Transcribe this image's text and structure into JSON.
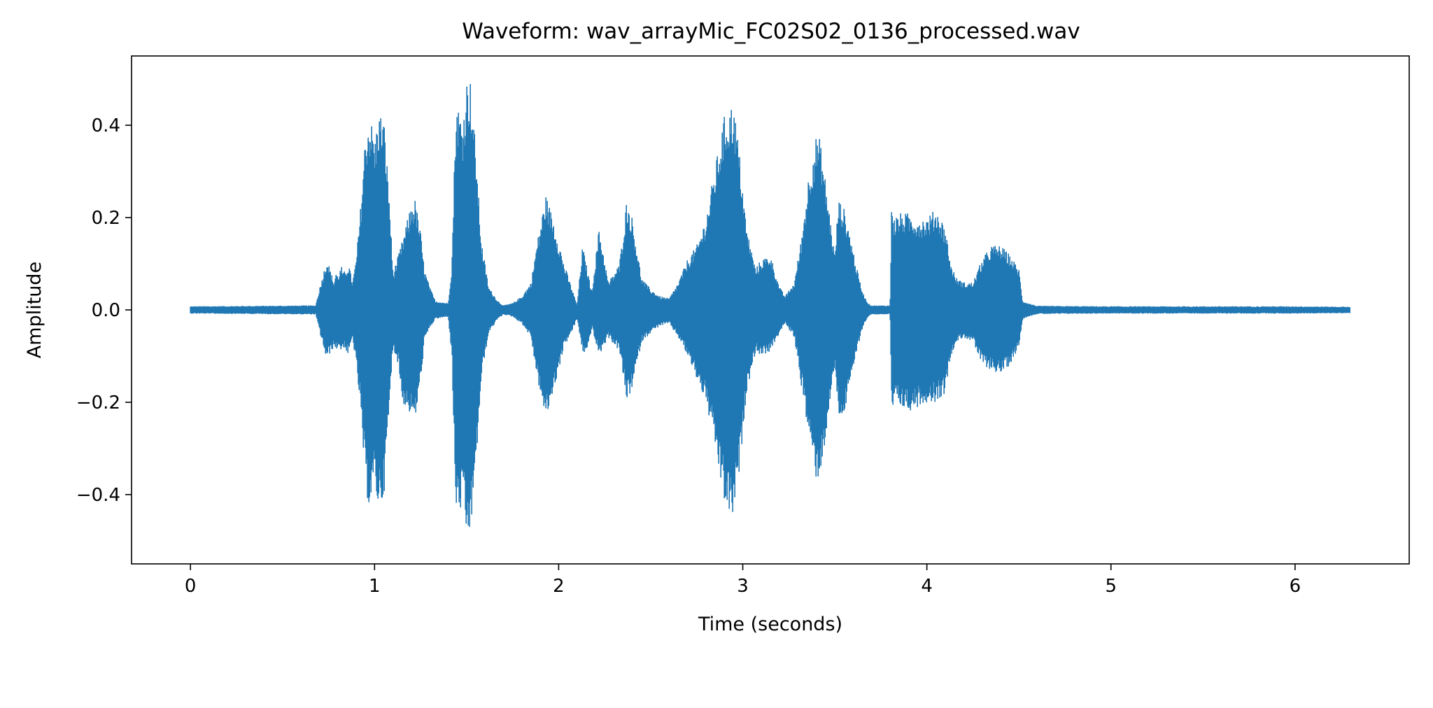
{
  "chart_data": {
    "type": "line",
    "title": "Waveform: wav_arrayMic_FC02S02_0136_processed.wav",
    "xlabel": "Time (seconds)",
    "ylabel": "Amplitude",
    "xlim": [
      -0.32,
      6.62
    ],
    "ylim": [
      -0.55,
      0.55
    ],
    "xticks": [
      0,
      1,
      2,
      3,
      4,
      5,
      6
    ],
    "xtick_labels": [
      "0",
      "1",
      "2",
      "3",
      "4",
      "5",
      "6"
    ],
    "yticks": [
      0.4,
      0.2,
      0.0,
      -0.2,
      -0.4
    ],
    "ytick_labels": [
      "0.4",
      "0.2",
      "0.0",
      "−0.2",
      "−0.4"
    ],
    "grid": false,
    "legend": false,
    "series": [
      {
        "color": "#1f77b4",
        "x_range": [
          0,
          6.3
        ],
        "envelope": {
          "time": [
            0.0,
            0.68,
            0.7,
            0.74,
            0.75,
            0.78,
            0.79,
            0.8,
            0.82,
            0.83,
            0.86,
            0.88,
            0.9,
            0.92,
            0.95,
            0.97,
            0.99,
            1.0,
            1.02,
            1.05,
            1.08,
            1.1,
            1.13,
            1.15,
            1.2,
            1.22,
            1.25,
            1.27,
            1.3,
            1.33,
            1.4,
            1.42,
            1.44,
            1.45,
            1.48,
            1.5,
            1.52,
            1.55,
            1.58,
            1.62,
            1.67,
            1.7,
            1.75,
            1.8,
            1.85,
            1.88,
            1.93,
            1.97,
            2.03,
            2.07,
            2.1,
            2.13,
            2.15,
            2.18,
            2.22,
            2.27,
            2.33,
            2.37,
            2.4,
            2.45,
            2.5,
            2.55,
            2.6,
            2.65,
            2.7,
            2.75,
            2.8,
            2.85,
            2.9,
            2.93,
            2.95,
            2.98,
            3.02,
            3.07,
            3.1,
            3.15,
            3.2,
            3.23,
            3.28,
            3.32,
            3.36,
            3.4,
            3.42,
            3.45,
            3.5,
            3.52,
            3.55,
            3.58,
            3.62,
            3.65,
            3.68,
            3.7,
            3.75,
            3.8,
            3.81,
            3.82,
            3.85,
            3.9,
            3.95,
            4.0,
            4.05,
            4.1,
            4.13,
            4.16,
            4.2,
            4.25,
            4.3,
            4.35,
            4.4,
            4.45,
            4.5,
            4.52,
            4.55,
            4.6,
            5.0,
            5.5,
            6.0,
            6.3
          ],
          "upper": [
            0.008,
            0.01,
            0.045,
            0.11,
            0.1,
            0.06,
            0.085,
            0.075,
            0.095,
            0.08,
            0.1,
            0.06,
            0.11,
            0.2,
            0.38,
            0.42,
            0.4,
            0.36,
            0.43,
            0.42,
            0.25,
            0.08,
            0.12,
            0.15,
            0.23,
            0.24,
            0.17,
            0.09,
            0.05,
            0.02,
            0.015,
            0.1,
            0.42,
            0.45,
            0.41,
            0.5,
            0.5,
            0.35,
            0.15,
            0.05,
            0.02,
            0.01,
            0.015,
            0.03,
            0.06,
            0.14,
            0.25,
            0.2,
            0.1,
            0.05,
            0.01,
            0.14,
            0.1,
            0.04,
            0.18,
            0.06,
            0.1,
            0.24,
            0.2,
            0.07,
            0.045,
            0.03,
            0.025,
            0.06,
            0.11,
            0.14,
            0.2,
            0.31,
            0.42,
            0.44,
            0.45,
            0.35,
            0.18,
            0.09,
            0.11,
            0.12,
            0.05,
            0.03,
            0.06,
            0.16,
            0.3,
            0.38,
            0.37,
            0.28,
            0.12,
            0.24,
            0.22,
            0.17,
            0.09,
            0.04,
            0.015,
            0.01,
            0.01,
            0.01,
            0.26,
            0.2,
            0.21,
            0.21,
            0.2,
            0.2,
            0.22,
            0.18,
            0.1,
            0.07,
            0.06,
            0.06,
            0.11,
            0.14,
            0.14,
            0.12,
            0.09,
            0.02,
            0.015,
            0.009,
            0.008,
            0.008,
            0.008,
            0.007
          ],
          "lower": [
            -0.008,
            -0.01,
            -0.045,
            -0.11,
            -0.1,
            -0.08,
            -0.09,
            -0.08,
            -0.09,
            -0.08,
            -0.1,
            -0.06,
            -0.12,
            -0.2,
            -0.38,
            -0.43,
            -0.4,
            -0.38,
            -0.43,
            -0.41,
            -0.22,
            -0.08,
            -0.12,
            -0.2,
            -0.23,
            -0.24,
            -0.16,
            -0.07,
            -0.04,
            -0.02,
            -0.015,
            -0.1,
            -0.42,
            -0.45,
            -0.43,
            -0.5,
            -0.49,
            -0.35,
            -0.15,
            -0.05,
            -0.02,
            -0.01,
            -0.015,
            -0.03,
            -0.06,
            -0.14,
            -0.24,
            -0.18,
            -0.08,
            -0.05,
            -0.02,
            -0.09,
            -0.1,
            -0.04,
            -0.1,
            -0.06,
            -0.09,
            -0.2,
            -0.17,
            -0.07,
            -0.05,
            -0.035,
            -0.03,
            -0.06,
            -0.1,
            -0.15,
            -0.2,
            -0.3,
            -0.42,
            -0.45,
            -0.45,
            -0.36,
            -0.18,
            -0.09,
            -0.1,
            -0.09,
            -0.05,
            -0.03,
            -0.06,
            -0.17,
            -0.28,
            -0.37,
            -0.36,
            -0.28,
            -0.12,
            -0.23,
            -0.23,
            -0.17,
            -0.09,
            -0.04,
            -0.015,
            -0.01,
            -0.01,
            -0.01,
            -0.26,
            -0.2,
            -0.21,
            -0.22,
            -0.21,
            -0.2,
            -0.2,
            -0.18,
            -0.1,
            -0.07,
            -0.06,
            -0.07,
            -0.12,
            -0.13,
            -0.14,
            -0.12,
            -0.08,
            -0.02,
            -0.015,
            -0.009,
            -0.008,
            -0.008,
            -0.008,
            -0.007
          ]
        }
      }
    ]
  }
}
